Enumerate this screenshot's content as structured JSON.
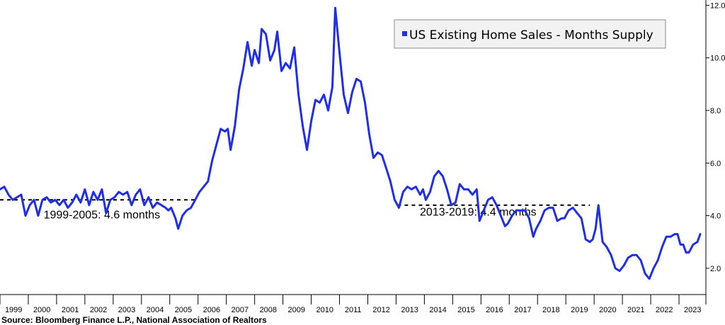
{
  "chart_data": {
    "type": "line",
    "series": [
      {
        "name": "US Existing Home Sales - Months Supply",
        "color": "#1f2ee8",
        "points": [
          [
            1999.0,
            5.0
          ],
          [
            1999.15,
            5.1
          ],
          [
            1999.3,
            4.8
          ],
          [
            1999.45,
            4.6
          ],
          [
            1999.6,
            4.7
          ],
          [
            1999.75,
            4.8
          ],
          [
            1999.9,
            4.0
          ],
          [
            2000.05,
            4.4
          ],
          [
            2000.2,
            4.6
          ],
          [
            2000.35,
            4.0
          ],
          [
            2000.5,
            4.6
          ],
          [
            2000.65,
            4.7
          ],
          [
            2000.8,
            4.5
          ],
          [
            2000.95,
            4.6
          ],
          [
            2001.1,
            4.4
          ],
          [
            2001.25,
            4.6
          ],
          [
            2001.4,
            4.3
          ],
          [
            2001.55,
            4.5
          ],
          [
            2001.7,
            4.8
          ],
          [
            2001.85,
            4.5
          ],
          [
            2002.0,
            5.0
          ],
          [
            2002.15,
            4.4
          ],
          [
            2002.3,
            4.9
          ],
          [
            2002.45,
            4.6
          ],
          [
            2002.6,
            5.0
          ],
          [
            2002.75,
            4.1
          ],
          [
            2002.9,
            4.6
          ],
          [
            2003.05,
            4.7
          ],
          [
            2003.2,
            4.9
          ],
          [
            2003.35,
            4.8
          ],
          [
            2003.5,
            4.9
          ],
          [
            2003.65,
            4.4
          ],
          [
            2003.8,
            4.8
          ],
          [
            2003.95,
            5.0
          ],
          [
            2004.1,
            4.4
          ],
          [
            2004.25,
            4.7
          ],
          [
            2004.4,
            4.3
          ],
          [
            2004.55,
            4.5
          ],
          [
            2004.7,
            4.4
          ],
          [
            2004.85,
            4.3
          ],
          [
            2004.95,
            4.2
          ],
          [
            2005.05,
            4.3
          ],
          [
            2005.2,
            3.9
          ],
          [
            2005.3,
            3.5
          ],
          [
            2005.45,
            4.0
          ],
          [
            2005.6,
            4.2
          ],
          [
            2005.75,
            4.3
          ],
          [
            2005.9,
            4.6
          ],
          [
            2006.05,
            4.9
          ],
          [
            2006.2,
            5.1
          ],
          [
            2006.35,
            5.3
          ],
          [
            2006.5,
            6.1
          ],
          [
            2006.65,
            6.7
          ],
          [
            2006.8,
            7.3
          ],
          [
            2006.95,
            7.2
          ],
          [
            2007.05,
            7.3
          ],
          [
            2007.15,
            6.5
          ],
          [
            2007.3,
            7.4
          ],
          [
            2007.45,
            8.8
          ],
          [
            2007.6,
            9.6
          ],
          [
            2007.75,
            10.6
          ],
          [
            2007.9,
            9.7
          ],
          [
            2008.0,
            10.3
          ],
          [
            2008.15,
            9.8
          ],
          [
            2008.25,
            11.1
          ],
          [
            2008.4,
            10.9
          ],
          [
            2008.55,
            9.9
          ],
          [
            2008.7,
            10.3
          ],
          [
            2008.8,
            11.0
          ],
          [
            2008.95,
            9.5
          ],
          [
            2009.1,
            9.8
          ],
          [
            2009.25,
            9.6
          ],
          [
            2009.4,
            10.4
          ],
          [
            2009.55,
            8.6
          ],
          [
            2009.7,
            7.4
          ],
          [
            2009.85,
            6.5
          ],
          [
            2010.0,
            7.6
          ],
          [
            2010.15,
            8.4
          ],
          [
            2010.3,
            8.3
          ],
          [
            2010.45,
            8.6
          ],
          [
            2010.6,
            8.0
          ],
          [
            2010.75,
            8.9
          ],
          [
            2010.85,
            11.9
          ],
          [
            2011.0,
            10.2
          ],
          [
            2011.15,
            8.6
          ],
          [
            2011.3,
            7.9
          ],
          [
            2011.45,
            8.7
          ],
          [
            2011.6,
            9.2
          ],
          [
            2011.75,
            9.1
          ],
          [
            2011.9,
            8.3
          ],
          [
            2012.05,
            7.1
          ],
          [
            2012.2,
            6.2
          ],
          [
            2012.35,
            6.4
          ],
          [
            2012.5,
            6.3
          ],
          [
            2012.65,
            5.8
          ],
          [
            2012.8,
            5.3
          ],
          [
            2012.95,
            4.6
          ],
          [
            2013.1,
            4.3
          ],
          [
            2013.25,
            4.9
          ],
          [
            2013.4,
            5.1
          ],
          [
            2013.55,
            5.0
          ],
          [
            2013.7,
            5.1
          ],
          [
            2013.85,
            4.8
          ],
          [
            2013.95,
            5.0
          ],
          [
            2014.05,
            4.6
          ],
          [
            2014.2,
            4.9
          ],
          [
            2014.35,
            5.5
          ],
          [
            2014.5,
            5.7
          ],
          [
            2014.65,
            5.5
          ],
          [
            2014.8,
            5.0
          ],
          [
            2014.95,
            4.4
          ],
          [
            2015.1,
            4.5
          ],
          [
            2015.25,
            5.2
          ],
          [
            2015.4,
            5.0
          ],
          [
            2015.55,
            5.0
          ],
          [
            2015.7,
            4.8
          ],
          [
            2015.85,
            5.0
          ],
          [
            2015.95,
            3.8
          ],
          [
            2016.1,
            4.2
          ],
          [
            2016.25,
            4.6
          ],
          [
            2016.4,
            4.7
          ],
          [
            2016.55,
            4.4
          ],
          [
            2016.7,
            4.0
          ],
          [
            2016.85,
            3.6
          ],
          [
            2016.95,
            3.7
          ],
          [
            2017.1,
            4.0
          ],
          [
            2017.25,
            4.2
          ],
          [
            2017.4,
            4.2
          ],
          [
            2017.55,
            4.2
          ],
          [
            2017.7,
            3.9
          ],
          [
            2017.85,
            3.2
          ],
          [
            2017.95,
            3.5
          ],
          [
            2018.1,
            3.8
          ],
          [
            2018.25,
            4.2
          ],
          [
            2018.4,
            4.3
          ],
          [
            2018.55,
            4.3
          ],
          [
            2018.7,
            3.8
          ],
          [
            2018.85,
            3.9
          ],
          [
            2018.95,
            3.9
          ],
          [
            2019.1,
            4.2
          ],
          [
            2019.25,
            4.3
          ],
          [
            2019.4,
            4.1
          ],
          [
            2019.55,
            3.9
          ],
          [
            2019.7,
            3.1
          ],
          [
            2019.85,
            3.0
          ],
          [
            2019.95,
            3.1
          ],
          [
            2020.05,
            3.5
          ],
          [
            2020.15,
            4.4
          ],
          [
            2020.3,
            3.0
          ],
          [
            2020.45,
            2.8
          ],
          [
            2020.6,
            2.5
          ],
          [
            2020.75,
            2.0
          ],
          [
            2020.9,
            1.9
          ],
          [
            2021.05,
            2.1
          ],
          [
            2021.2,
            2.4
          ],
          [
            2021.35,
            2.5
          ],
          [
            2021.5,
            2.5
          ],
          [
            2021.65,
            2.3
          ],
          [
            2021.8,
            1.8
          ],
          [
            2021.95,
            1.6
          ],
          [
            2022.1,
            2.0
          ],
          [
            2022.25,
            2.3
          ],
          [
            2022.4,
            2.8
          ],
          [
            2022.55,
            3.2
          ],
          [
            2022.7,
            3.2
          ],
          [
            2022.85,
            3.3
          ],
          [
            2022.95,
            3.3
          ],
          [
            2023.05,
            2.9
          ],
          [
            2023.15,
            2.9
          ],
          [
            2023.25,
            2.6
          ],
          [
            2023.35,
            2.6
          ],
          [
            2023.5,
            2.9
          ],
          [
            2023.65,
            3.0
          ],
          [
            2023.75,
            3.3
          ]
        ]
      }
    ],
    "reference_lines": [
      {
        "x_start": 1999.0,
        "x_end": 2005.9,
        "y": 4.6,
        "style": "dashed",
        "color": "#000000"
      },
      {
        "x_start": 2013.05,
        "x_end": 2019.85,
        "y": 4.4,
        "style": "dashed",
        "color": "#000000"
      }
    ],
    "annotations": [
      {
        "text": "1999-2005: 4.6 months",
        "x": 2002.6,
        "y": 3.9
      },
      {
        "text": "2013-2019: 4.4 months",
        "x": 2015.9,
        "y": 4.0
      }
    ],
    "x_ticks": [
      "1999",
      "2000",
      "2001",
      "2002",
      "2003",
      "2004",
      "2005",
      "2006",
      "2007",
      "2008",
      "2009",
      "2010",
      "2011",
      "2012",
      "2013",
      "2014",
      "2015",
      "2016",
      "2017",
      "2018",
      "2019",
      "2020",
      "2021",
      "2022",
      "2023"
    ],
    "y_ticks": [
      "2.0",
      "4.0",
      "6.0",
      "8.0",
      "10.0",
      "12.0"
    ],
    "y_tick_values": [
      2,
      4,
      6,
      8,
      10,
      12
    ],
    "xlim": [
      1999.0,
      2023.95
    ],
    "ylim": [
      1.0,
      12.2
    ],
    "yaxis_position": "right",
    "grid": false,
    "legend": {
      "position": "top-right",
      "label": "US Existing Home Sales - Months Supply"
    },
    "source": "Source: Bloomberg Finance L.P., National Association of Realtors"
  }
}
